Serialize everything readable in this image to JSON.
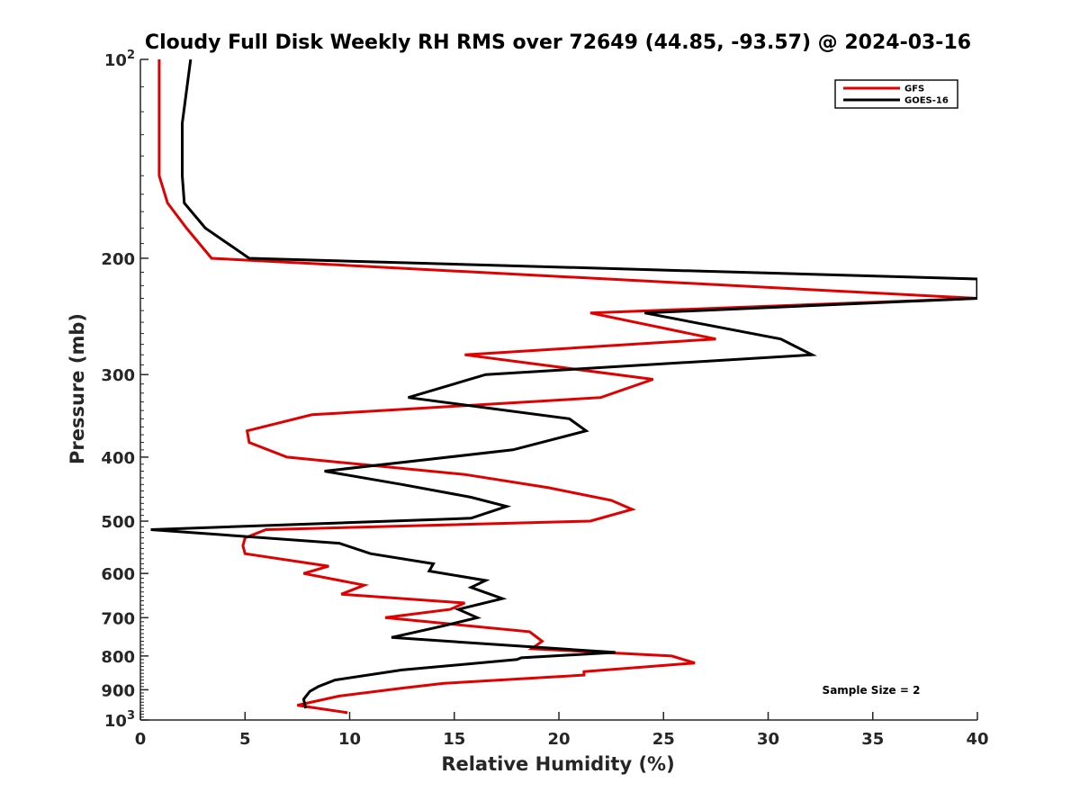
{
  "chart_data": {
    "type": "line",
    "title": "Cloudy Full Disk Weekly RH RMS over 72649 (44.85, -93.57) @ 2024-03-16",
    "xlabel": "Relative Humidity (%)",
    "ylabel": "Pressure (mb)",
    "xlim": [
      0,
      40
    ],
    "ylim": [
      100,
      1000
    ],
    "yscale": "log",
    "y_reversed": true,
    "grid": false,
    "legend_position": "top-right",
    "x_ticks": [
      "0",
      "5",
      "10",
      "15",
      "20",
      "25",
      "30",
      "35",
      "40"
    ],
    "y_ticks": [
      {
        "value": 100,
        "base": "10",
        "exp": "2"
      },
      {
        "value": 200,
        "label": "200"
      },
      {
        "value": 300,
        "label": "300"
      },
      {
        "value": 400,
        "label": "400"
      },
      {
        "value": 500,
        "label": "500"
      },
      {
        "value": 600,
        "label": "600"
      },
      {
        "value": 700,
        "label": "700"
      },
      {
        "value": 800,
        "label": "800"
      },
      {
        "value": 900,
        "label": "900"
      },
      {
        "value": 1000,
        "base": "10",
        "exp": "3"
      }
    ],
    "annotation": "Sample Size = 2",
    "series": [
      {
        "name": "GFS",
        "color": "#e00000",
        "points": [
          [
            0.9,
            100
          ],
          [
            0.9,
            125
          ],
          [
            0.9,
            150
          ],
          [
            1.3,
            165
          ],
          [
            2.2,
            180
          ],
          [
            3.4,
            200
          ],
          [
            40,
            230
          ],
          [
            21.5,
            242
          ],
          [
            27.5,
            265
          ],
          [
            15.5,
            280
          ],
          [
            24.5,
            305
          ],
          [
            22.0,
            325
          ],
          [
            8.2,
            345
          ],
          [
            5.1,
            365
          ],
          [
            5.2,
            380
          ],
          [
            7.0,
            400
          ],
          [
            15.5,
            425
          ],
          [
            19.5,
            445
          ],
          [
            22.5,
            465
          ],
          [
            23.5,
            480
          ],
          [
            21.5,
            500
          ],
          [
            6.0,
            515
          ],
          [
            5.0,
            530
          ],
          [
            4.9,
            545
          ],
          [
            5.0,
            560
          ],
          [
            9.0,
            585
          ],
          [
            7.8,
            600
          ],
          [
            10.7,
            625
          ],
          [
            9.6,
            645
          ],
          [
            15.5,
            665
          ],
          [
            14.8,
            680
          ],
          [
            11.7,
            700
          ],
          [
            18.6,
            735
          ],
          [
            19.2,
            760
          ],
          [
            18.7,
            780
          ],
          [
            25.4,
            800
          ],
          [
            26.5,
            820
          ],
          [
            21.2,
            845
          ],
          [
            21.2,
            855
          ],
          [
            14.5,
            880
          ],
          [
            12.5,
            895
          ],
          [
            9.5,
            920
          ],
          [
            7.5,
            950
          ],
          [
            9.9,
            975
          ]
        ]
      },
      {
        "name": "GOES-16",
        "color": "#000000",
        "points": [
          [
            2.4,
            100
          ],
          [
            2.0,
            125
          ],
          [
            2.0,
            150
          ],
          [
            2.1,
            165
          ],
          [
            3.1,
            180
          ],
          [
            5.2,
            200
          ],
          [
            40,
            215
          ],
          [
            40,
            230
          ],
          [
            24.1,
            242
          ],
          [
            30.6,
            265
          ],
          [
            32.1,
            280
          ],
          [
            16.5,
            300
          ],
          [
            12.8,
            325
          ],
          [
            20.5,
            350
          ],
          [
            21.3,
            365
          ],
          [
            17.8,
            390
          ],
          [
            8.8,
            420
          ],
          [
            12.5,
            440
          ],
          [
            15.8,
            460
          ],
          [
            17.5,
            475
          ],
          [
            15.8,
            495
          ],
          [
            0.5,
            515
          ],
          [
            9.5,
            540
          ],
          [
            11.0,
            560
          ],
          [
            14.0,
            580
          ],
          [
            13.8,
            595
          ],
          [
            16.5,
            615
          ],
          [
            15.8,
            630
          ],
          [
            17.3,
            655
          ],
          [
            15.2,
            680
          ],
          [
            16.1,
            700
          ],
          [
            14.5,
            720
          ],
          [
            12.0,
            750
          ],
          [
            20.0,
            780
          ],
          [
            22.7,
            790
          ],
          [
            18.2,
            805
          ],
          [
            18.0,
            810
          ],
          [
            12.5,
            840
          ],
          [
            9.3,
            870
          ],
          [
            8.5,
            890
          ],
          [
            8.1,
            905
          ],
          [
            7.8,
            930
          ],
          [
            7.9,
            960
          ]
        ]
      }
    ]
  }
}
